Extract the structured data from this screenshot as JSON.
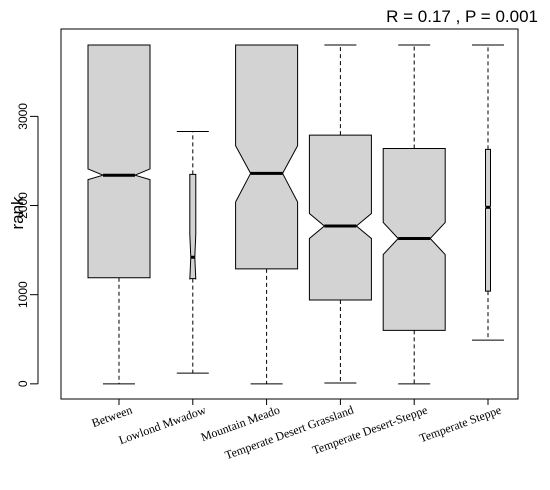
{
  "chart_data": {
    "type": "boxplot",
    "notched": true,
    "annotation": "R =  0.17 ,  P =  0.001",
    "ylabel": "rank",
    "xlabel": "",
    "ylim": [
      -170,
      3980
    ],
    "yticks": [
      0,
      1000,
      2000,
      3000
    ],
    "fill_color": "#d3d3d3",
    "categories": [
      "Between",
      "Lowlond Mwadow",
      "Mountain Meado",
      "Temperate Desert Grassland",
      "Temperate Desert-Steppe",
      "Temperate Steppe"
    ],
    "boxes": [
      {
        "whisker_low": 0,
        "q1": 1190,
        "notch_low": 2290,
        "median": 2340,
        "notch_high": 2410,
        "q3": 3800,
        "whisker_high": 3800
      },
      {
        "whisker_low": 120,
        "q1": 1180,
        "notch_low": 1170,
        "median": 1420,
        "notch_high": 1680,
        "q3": 2350,
        "whisker_high": 2830
      },
      {
        "whisker_low": 0,
        "q1": 1290,
        "notch_low": 2040,
        "median": 2360,
        "notch_high": 2670,
        "q3": 3800,
        "whisker_high": 3800
      },
      {
        "whisker_low": 10,
        "q1": 940,
        "notch_low": 1630,
        "median": 1770,
        "notch_high": 1910,
        "q3": 2790,
        "whisker_high": 3800
      },
      {
        "whisker_low": 0,
        "q1": 600,
        "notch_low": 1450,
        "median": 1630,
        "notch_high": 1810,
        "q3": 2640,
        "whisker_high": 3800
      },
      {
        "whisker_low": 490,
        "q1": 1040,
        "notch_low": 1960,
        "median": 1980,
        "notch_high": 2000,
        "q3": 2630,
        "whisker_high": 3800
      }
    ]
  }
}
